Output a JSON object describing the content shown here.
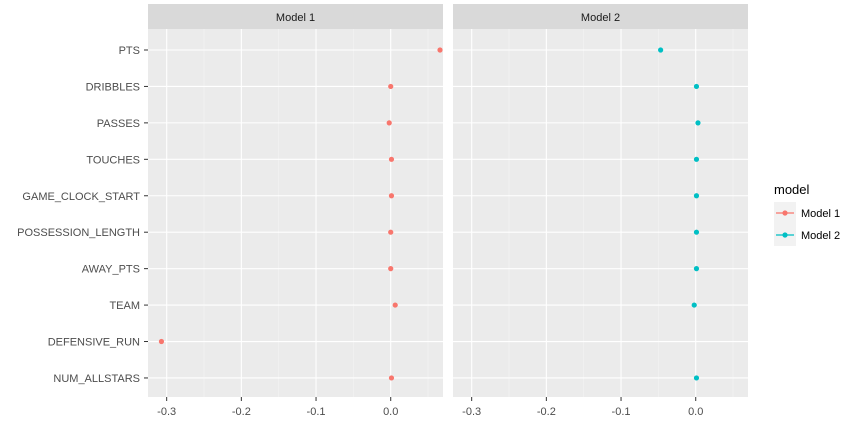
{
  "chart_data": {
    "type": "scatter",
    "title": "",
    "xlabel": "",
    "ylabel": "",
    "categories": [
      "PTS",
      "DRIBBLES",
      "PASSES",
      "TOUCHES",
      "GAME_CLOCK_START",
      "POSSESSION_LENGTH",
      "AWAY_PTS",
      "TEAM",
      "DEFENSIVE_RUN",
      "NUM_ALLSTARS"
    ],
    "x_ticks": [
      -0.3,
      -0.2,
      -0.1,
      0.0
    ],
    "x_tick_labels": [
      "-0.3",
      "-0.2",
      "-0.1",
      "0.0"
    ],
    "xlim": [
      -0.325,
      0.07
    ],
    "grid": true,
    "legend_position": "right",
    "legend_title": "model",
    "series": [
      {
        "name": "Model 1",
        "panel": "Model 1",
        "color": "#F8766D",
        "values": [
          0.066,
          0.0,
          -0.002,
          0.001,
          0.001,
          0.0,
          0.0,
          0.006,
          -0.307,
          0.001
        ]
      },
      {
        "name": "Model 2",
        "panel": "Model 2",
        "color": "#00BFC4",
        "values": [
          -0.047,
          0.001,
          0.003,
          0.001,
          0.001,
          0.001,
          0.001,
          -0.002,
          null,
          0.001
        ]
      }
    ],
    "panels": [
      "Model 1",
      "Model 2"
    ]
  },
  "colors": {
    "panel_background": "#ebebeb",
    "strip_background": "#d9d9d9",
    "grid_major": "#ffffff",
    "grid_minor": "#f4f4f4"
  }
}
